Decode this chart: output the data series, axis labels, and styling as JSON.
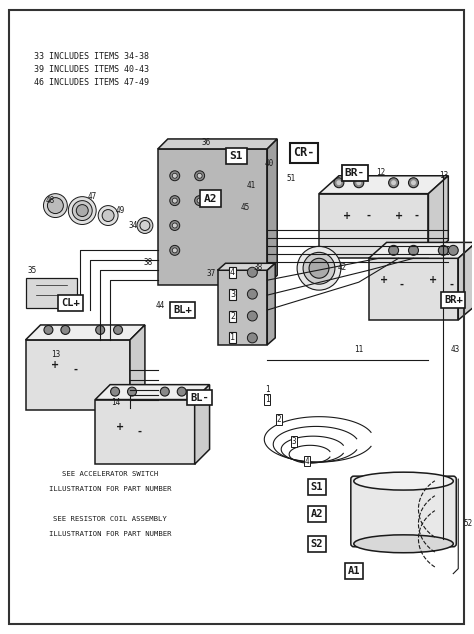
{
  "bg_color": "#ffffff",
  "line_color": "#1a1a1a",
  "figsize": [
    4.74,
    6.34
  ],
  "dpi": 100,
  "legend_lines": [
    "33 INCLUDES ITEMS 34-38",
    "39 INCLUDES ITEMS 40-43",
    "46 INCLUDES ITEMS 47-49"
  ]
}
